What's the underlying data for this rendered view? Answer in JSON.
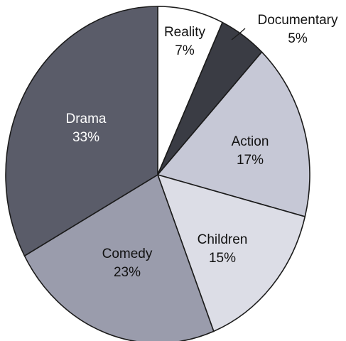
{
  "chart_data": {
    "type": "pie",
    "slices": [
      {
        "label": "Reality",
        "value": 7,
        "value_label": "7%",
        "color": "#ffffff",
        "text_color": "#111111"
      },
      {
        "label": "Documentary",
        "value": 5,
        "value_label": "5%",
        "color": "#3a3c44",
        "text_color": "#111111"
      },
      {
        "label": "Action",
        "value": 17,
        "value_label": "17%",
        "color": "#c6c8d6",
        "text_color": "#111111"
      },
      {
        "label": "Children",
        "value": 15,
        "value_label": "15%",
        "color": "#dcdde6",
        "text_color": "#111111"
      },
      {
        "label": "Comedy",
        "value": 23,
        "value_label": "23%",
        "color": "#9a9cac",
        "text_color": "#111111"
      },
      {
        "label": "Drama",
        "value": 33,
        "value_label": "33%",
        "color": "#5a5c69",
        "text_color": "#ffffff"
      }
    ],
    "start_angle": "12 o'clock",
    "direction": "clockwise",
    "legend": "none"
  }
}
